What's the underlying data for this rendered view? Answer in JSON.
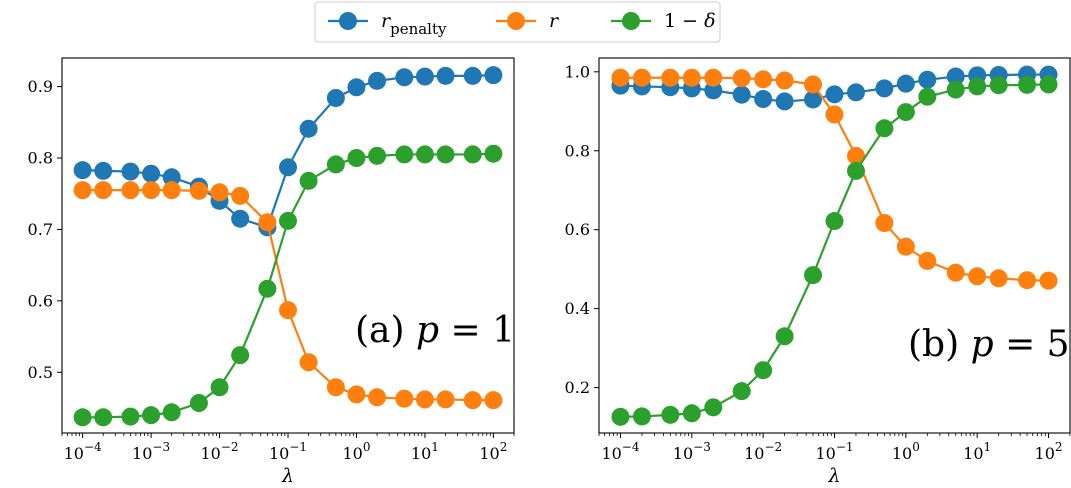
{
  "legend": {
    "entries": [
      {
        "label": "r",
        "subscript": "penalty",
        "color": "#1f77b4"
      },
      {
        "label": "r",
        "subscript": "",
        "color": "#ff7f0e"
      },
      {
        "label": "1 − δ",
        "subscript": "",
        "color": "#2ca02c"
      }
    ]
  },
  "chart_data": [
    {
      "type": "line",
      "annotation": {
        "prefix": "(a) ",
        "var": "p",
        "rest": " = 1"
      },
      "xlabel": "λ",
      "xscale": "log",
      "xlim": [
        5e-05,
        200
      ],
      "ylim": [
        0.415,
        0.94
      ],
      "yticks": [
        0.5,
        0.6,
        0.7,
        0.8,
        0.9
      ],
      "ytick_labels": [
        "0.5",
        "0.6",
        "0.7",
        "0.8",
        "0.9"
      ],
      "xticks": [
        0.0001,
        0.001,
        0.01,
        0.1,
        1,
        10,
        100
      ],
      "xtick_labels": [
        {
          "base": "10",
          "exp": "−4"
        },
        {
          "base": "10",
          "exp": "−3"
        },
        {
          "base": "10",
          "exp": "−2"
        },
        {
          "base": "10",
          "exp": "−1"
        },
        {
          "base": "10",
          "exp": "0"
        },
        {
          "base": "10",
          "exp": "1"
        },
        {
          "base": "10",
          "exp": "2"
        }
      ],
      "x": [
        0.0001,
        0.0002,
        0.0005,
        0.001,
        0.002,
        0.005,
        0.01,
        0.02,
        0.05,
        0.1,
        0.2,
        0.5,
        1,
        2,
        5,
        10,
        20,
        50,
        100
      ],
      "series": [
        {
          "color": "#1f77b4",
          "values": [
            0.783,
            0.782,
            0.781,
            0.778,
            0.773,
            0.76,
            0.74,
            0.715,
            0.703,
            0.787,
            0.841,
            0.884,
            0.899,
            0.908,
            0.913,
            0.914,
            0.915,
            0.915,
            0.916
          ]
        },
        {
          "color": "#ff7f0e",
          "values": [
            0.755,
            0.755,
            0.755,
            0.755,
            0.755,
            0.754,
            0.752,
            0.747,
            0.71,
            0.587,
            0.514,
            0.479,
            0.469,
            0.465,
            0.463,
            0.462,
            0.462,
            0.461,
            0.461
          ]
        },
        {
          "color": "#2ca02c",
          "values": [
            0.437,
            0.437,
            0.438,
            0.44,
            0.444,
            0.457,
            0.479,
            0.524,
            0.617,
            0.712,
            0.768,
            0.791,
            0.8,
            0.803,
            0.805,
            0.805,
            0.805,
            0.805,
            0.806
          ]
        }
      ]
    },
    {
      "type": "line",
      "annotation": {
        "prefix": "(b) ",
        "var": "p",
        "rest": " = 5"
      },
      "xlabel": "λ",
      "xscale": "log",
      "xlim": [
        5e-05,
        200
      ],
      "ylim": [
        0.085,
        1.035
      ],
      "yticks": [
        0.2,
        0.4,
        0.6,
        0.8,
        1.0
      ],
      "ytick_labels": [
        "0.2",
        "0.4",
        "0.6",
        "0.8",
        "1.0"
      ],
      "xticks": [
        0.0001,
        0.001,
        0.01,
        0.1,
        1,
        10,
        100
      ],
      "xtick_labels": [
        {
          "base": "10",
          "exp": "−4"
        },
        {
          "base": "10",
          "exp": "−3"
        },
        {
          "base": "10",
          "exp": "−2"
        },
        {
          "base": "10",
          "exp": "−1"
        },
        {
          "base": "10",
          "exp": "0"
        },
        {
          "base": "10",
          "exp": "1"
        },
        {
          "base": "10",
          "exp": "2"
        }
      ],
      "x": [
        0.0001,
        0.0002,
        0.0005,
        0.001,
        0.002,
        0.005,
        0.01,
        0.02,
        0.05,
        0.1,
        0.2,
        0.5,
        1,
        2,
        5,
        10,
        20,
        50,
        100
      ],
      "series": [
        {
          "color": "#1f77b4",
          "values": [
            0.965,
            0.963,
            0.961,
            0.958,
            0.953,
            0.942,
            0.931,
            0.925,
            0.93,
            0.943,
            0.948,
            0.958,
            0.97,
            0.98,
            0.988,
            0.991,
            0.992,
            0.993,
            0.993
          ]
        },
        {
          "color": "#ff7f0e",
          "values": [
            0.985,
            0.985,
            0.985,
            0.985,
            0.985,
            0.984,
            0.981,
            0.978,
            0.968,
            0.892,
            0.787,
            0.617,
            0.557,
            0.521,
            0.491,
            0.482,
            0.477,
            0.472,
            0.471
          ]
        },
        {
          "color": "#2ca02c",
          "values": [
            0.126,
            0.127,
            0.131,
            0.135,
            0.15,
            0.191,
            0.244,
            0.33,
            0.485,
            0.622,
            0.749,
            0.857,
            0.898,
            0.937,
            0.955,
            0.963,
            0.966,
            0.967,
            0.968
          ]
        }
      ]
    }
  ]
}
